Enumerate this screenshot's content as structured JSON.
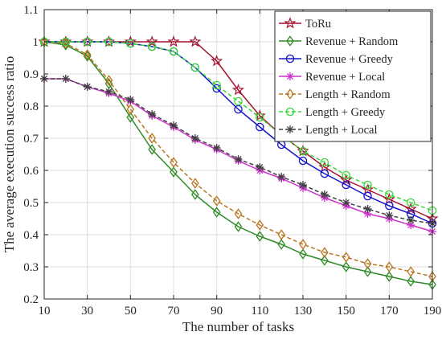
{
  "chart_data": {
    "type": "line",
    "title": "",
    "xlabel": "The number of tasks",
    "ylabel": "The average execution success ratio",
    "xlim": [
      10,
      190
    ],
    "ylim": [
      0.2,
      1.1
    ],
    "x_ticks": [
      10,
      30,
      50,
      70,
      90,
      110,
      130,
      150,
      170,
      190
    ],
    "y_ticks": [
      "0.2",
      "0.3",
      "0.4",
      "0.5",
      "0.6",
      "0.7",
      "0.8",
      "0.9",
      "1",
      "1.1"
    ],
    "grid": true,
    "legend_position": "top-right",
    "x": [
      10,
      20,
      30,
      40,
      50,
      60,
      70,
      80,
      90,
      100,
      110,
      120,
      130,
      140,
      150,
      160,
      170,
      180,
      190
    ],
    "series": [
      {
        "name": "ToRu",
        "color": "#a2142f",
        "marker": "star",
        "dash": "solid",
        "values": [
          1.0,
          1.0,
          1.0,
          1.0,
          1.0,
          1.0,
          1.0,
          1.0,
          0.94,
          0.85,
          0.77,
          0.71,
          0.66,
          0.61,
          0.57,
          0.54,
          0.51,
          0.48,
          0.45
        ]
      },
      {
        "name": "Revenue + Random",
        "color": "#2e8b25",
        "marker": "diamond",
        "dash": "solid",
        "values": [
          1.0,
          0.99,
          0.955,
          0.87,
          0.765,
          0.665,
          0.595,
          0.525,
          0.47,
          0.425,
          0.395,
          0.37,
          0.34,
          0.32,
          0.3,
          0.285,
          0.27,
          0.255,
          0.245
        ]
      },
      {
        "name": "Revenue + Greedy",
        "color": "#1414cc",
        "marker": "circle",
        "dash": "solid",
        "values": [
          1.0,
          1.0,
          1.0,
          1.0,
          0.995,
          0.985,
          0.97,
          0.92,
          0.855,
          0.79,
          0.735,
          0.68,
          0.63,
          0.59,
          0.555,
          0.52,
          0.49,
          0.465,
          0.435
        ]
      },
      {
        "name": "Revenue + Local",
        "color": "#cc33cc",
        "marker": "asterisk",
        "dash": "solid",
        "values": [
          0.885,
          0.885,
          0.86,
          0.84,
          0.815,
          0.77,
          0.735,
          0.695,
          0.665,
          0.63,
          0.6,
          0.575,
          0.545,
          0.515,
          0.49,
          0.465,
          0.45,
          0.43,
          0.41
        ]
      },
      {
        "name": "Length + Random",
        "color": "#b8751f",
        "marker": "diamond",
        "dash": "dashed",
        "values": [
          1.0,
          0.995,
          0.96,
          0.88,
          0.79,
          0.7,
          0.625,
          0.56,
          0.505,
          0.465,
          0.43,
          0.4,
          0.37,
          0.345,
          0.33,
          0.31,
          0.3,
          0.285,
          0.27
        ]
      },
      {
        "name": "Length + Greedy",
        "color": "#3dd63d",
        "marker": "circle",
        "dash": "dashed",
        "values": [
          1.0,
          1.0,
          1.0,
          1.0,
          0.995,
          0.985,
          0.97,
          0.92,
          0.865,
          0.815,
          0.765,
          0.71,
          0.66,
          0.625,
          0.585,
          0.555,
          0.525,
          0.5,
          0.475
        ]
      },
      {
        "name": "Length + Local",
        "color": "#404040",
        "marker": "asterisk",
        "dash": "dashed",
        "values": [
          0.885,
          0.885,
          0.86,
          0.845,
          0.82,
          0.775,
          0.74,
          0.7,
          0.67,
          0.635,
          0.61,
          0.58,
          0.555,
          0.525,
          0.5,
          0.48,
          0.46,
          0.445,
          0.435
        ]
      }
    ]
  }
}
